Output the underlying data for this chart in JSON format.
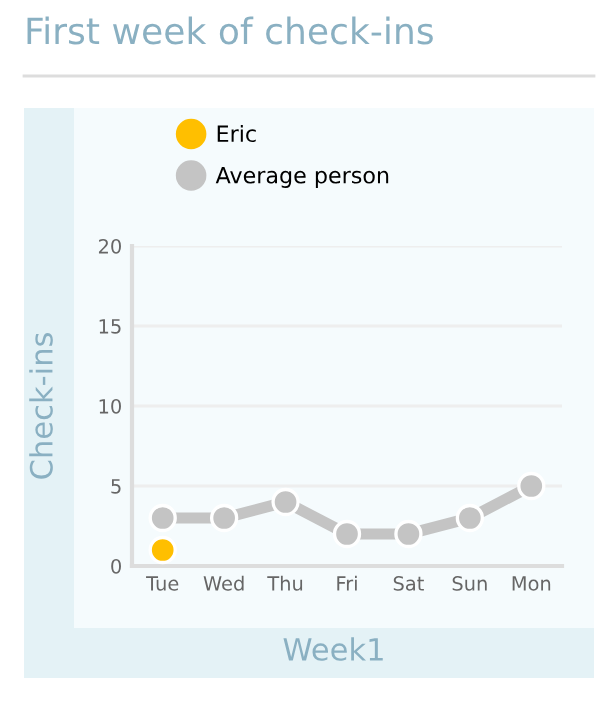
{
  "chart_data": {
    "type": "line",
    "title": "First week of check-ins",
    "xlabel": "Week1",
    "ylabel": "Check-ins",
    "categories": [
      "Tue",
      "Wed",
      "Thu",
      "Fri",
      "Sat",
      "Sun",
      "Mon"
    ],
    "series": [
      {
        "name": "Eric",
        "color": "#ffbf00",
        "values": [
          1,
          null,
          null,
          null,
          null,
          null,
          null
        ]
      },
      {
        "name": "Average person",
        "color": "#c4c4c4",
        "values": [
          3,
          3,
          4,
          2,
          2,
          3,
          5
        ]
      }
    ],
    "ylim": [
      0,
      20
    ],
    "yticks": [
      0,
      5,
      10,
      15,
      20
    ],
    "grid": "y",
    "legend": "top left",
    "marker": "circle",
    "line_style": "solid"
  }
}
